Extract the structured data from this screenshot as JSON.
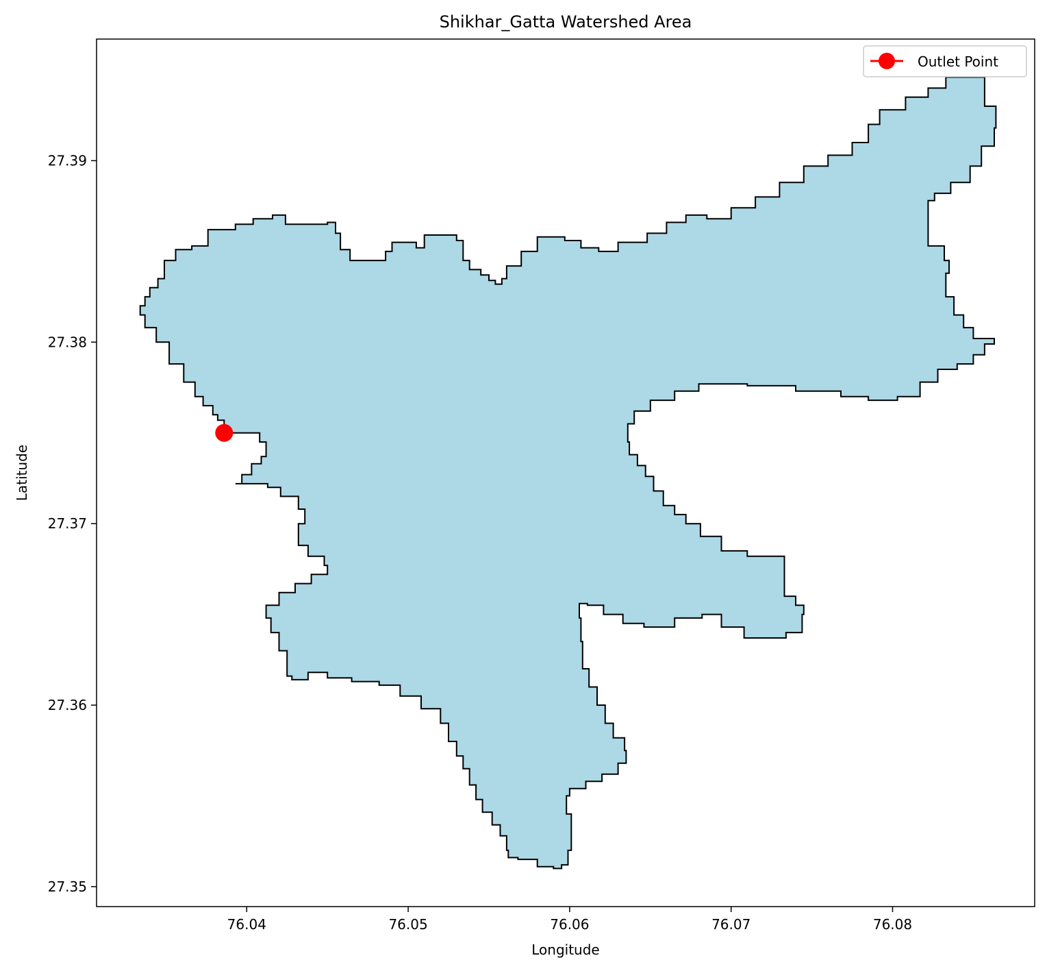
{
  "chart_data": {
    "type": "map",
    "title": "Shikhar_Gatta Watershed Area",
    "xlabel": "Longitude",
    "ylabel": "Latitude",
    "xlim": [
      76.0307,
      76.0888
    ],
    "ylim": [
      27.3489,
      27.3967
    ],
    "x_ticks": [
      76.04,
      76.05,
      76.06,
      76.07,
      76.08
    ],
    "x_tick_labels": [
      "76.04",
      "76.05",
      "76.06",
      "76.07",
      "76.08"
    ],
    "y_ticks": [
      27.35,
      27.36,
      27.37,
      27.38,
      27.39
    ],
    "y_tick_labels": [
      "27.35",
      "27.36",
      "27.37",
      "27.38",
      "27.39"
    ],
    "grid": false,
    "legend": {
      "placement": "top-right",
      "entries": [
        {
          "label": "Outlet Point",
          "color": "#ff0000",
          "marker": "circle"
        }
      ]
    },
    "colors": {
      "watershed_fill": "#add8e6",
      "boundary": "#000000",
      "outlet": "#ff0000"
    },
    "outlet": {
      "lon": 76.0386,
      "lat": 27.375
    },
    "boundary": [
      [
        76.0386,
        27.375
      ],
      [
        76.0386,
        27.3757
      ],
      [
        76.0382,
        27.376
      ],
      [
        76.0379,
        27.3765
      ],
      [
        76.0373,
        27.377
      ],
      [
        76.0368,
        27.3778
      ],
      [
        76.0361,
        27.3788
      ],
      [
        76.0352,
        27.38
      ],
      [
        76.0344,
        27.3808
      ],
      [
        76.0337,
        27.3815
      ],
      [
        76.0334,
        27.382
      ],
      [
        76.0337,
        27.3825
      ],
      [
        76.034,
        27.383
      ],
      [
        76.0345,
        27.3835
      ],
      [
        76.0349,
        27.3845
      ],
      [
        76.0356,
        27.3851
      ],
      [
        76.0366,
        27.3853
      ],
      [
        76.0376,
        27.3862
      ],
      [
        76.0393,
        27.3865
      ],
      [
        76.0404,
        27.3868
      ],
      [
        76.0416,
        27.387
      ],
      [
        76.0424,
        27.3865
      ],
      [
        76.0437,
        27.3865
      ],
      [
        76.045,
        27.3866
      ],
      [
        76.0455,
        27.386
      ],
      [
        76.0458,
        27.3851
      ],
      [
        76.0464,
        27.3845
      ],
      [
        76.0478,
        27.3845
      ],
      [
        76.0486,
        27.385
      ],
      [
        76.049,
        27.3855
      ],
      [
        76.05,
        27.3855
      ],
      [
        76.0505,
        27.3852
      ],
      [
        76.051,
        27.3859
      ],
      [
        76.052,
        27.3859
      ],
      [
        76.053,
        27.3856
      ],
      [
        76.0534,
        27.3845
      ],
      [
        76.0538,
        27.384
      ],
      [
        76.0545,
        27.3837
      ],
      [
        76.055,
        27.3834
      ],
      [
        76.0554,
        27.3832
      ],
      [
        76.0558,
        27.3835
      ],
      [
        76.0561,
        27.3842
      ],
      [
        76.057,
        27.385
      ],
      [
        76.058,
        27.3858
      ],
      [
        76.0589,
        27.3858
      ],
      [
        76.0597,
        27.3856
      ],
      [
        76.0607,
        27.3852
      ],
      [
        76.0618,
        27.385
      ],
      [
        76.063,
        27.3855
      ],
      [
        76.0648,
        27.386
      ],
      [
        76.066,
        27.3866
      ],
      [
        76.0672,
        27.387
      ],
      [
        76.0685,
        27.3868
      ],
      [
        76.07,
        27.3874
      ],
      [
        76.0715,
        27.388
      ],
      [
        76.073,
        27.3888
      ],
      [
        76.0745,
        27.3897
      ],
      [
        76.076,
        27.3903
      ],
      [
        76.0775,
        27.391
      ],
      [
        76.0785,
        27.392
      ],
      [
        76.0792,
        27.3928
      ],
      [
        76.0808,
        27.3935
      ],
      [
        76.0822,
        27.394
      ],
      [
        76.0833,
        27.3946
      ],
      [
        76.0848,
        27.3946
      ],
      [
        76.0857,
        27.393
      ],
      [
        76.0864,
        27.3918
      ],
      [
        76.0863,
        27.3908
      ],
      [
        76.0855,
        27.3897
      ],
      [
        76.0848,
        27.3888
      ],
      [
        76.0836,
        27.3882
      ],
      [
        76.0826,
        27.3878
      ],
      [
        76.0822,
        27.3867
      ],
      [
        76.0822,
        27.3853
      ],
      [
        76.0832,
        27.3845
      ],
      [
        76.0835,
        27.3838
      ],
      [
        76.0833,
        27.3825
      ],
      [
        76.0838,
        27.3815
      ],
      [
        76.0844,
        27.3808
      ],
      [
        76.085,
        27.3802
      ],
      [
        76.0863,
        27.3799
      ],
      [
        76.0857,
        27.3793
      ],
      [
        76.085,
        27.3788
      ],
      [
        76.084,
        27.3785
      ],
      [
        76.0828,
        27.3778
      ],
      [
        76.0817,
        27.377
      ],
      [
        76.0803,
        27.3768
      ],
      [
        76.0785,
        27.377
      ],
      [
        76.0768,
        27.3773
      ],
      [
        76.074,
        27.3776
      ],
      [
        76.071,
        27.3777
      ],
      [
        76.068,
        27.3773
      ],
      [
        76.0665,
        27.3768
      ],
      [
        76.065,
        27.3762
      ],
      [
        76.064,
        27.3755
      ],
      [
        76.0636,
        27.3745
      ],
      [
        76.0637,
        27.3738
      ],
      [
        76.0642,
        27.3732
      ],
      [
        76.0647,
        27.3726
      ],
      [
        76.0652,
        27.3718
      ],
      [
        76.0658,
        27.371
      ],
      [
        76.0665,
        27.3705
      ],
      [
        76.0672,
        27.37
      ],
      [
        76.0681,
        27.3693
      ],
      [
        76.0694,
        27.3685
      ],
      [
        76.071,
        27.3682
      ],
      [
        76.0733,
        27.3682
      ],
      [
        76.0733,
        27.366
      ],
      [
        76.074,
        27.3655
      ],
      [
        76.0745,
        27.365
      ],
      [
        76.0744,
        27.364
      ],
      [
        76.0734,
        27.3637
      ],
      [
        76.0722,
        27.3637
      ],
      [
        76.0708,
        27.3643
      ],
      [
        76.0694,
        27.365
      ],
      [
        76.0682,
        27.3648
      ],
      [
        76.0665,
        27.3643
      ],
      [
        76.0646,
        27.3645
      ],
      [
        76.0633,
        27.365
      ],
      [
        76.0621,
        27.3655
      ],
      [
        76.0611,
        27.3656
      ],
      [
        76.0606,
        27.3648
      ],
      [
        76.0607,
        27.3635
      ],
      [
        76.0608,
        27.362
      ],
      [
        76.0612,
        27.361
      ],
      [
        76.0617,
        27.36
      ],
      [
        76.0622,
        27.359
      ],
      [
        76.0627,
        27.3582
      ],
      [
        76.0634,
        27.3575
      ],
      [
        76.0635,
        27.3568
      ],
      [
        76.063,
        27.3562
      ],
      [
        76.062,
        27.3558
      ],
      [
        76.061,
        27.3554
      ],
      [
        76.06,
        27.355
      ],
      [
        76.0598,
        27.354
      ],
      [
        76.0601,
        27.353
      ],
      [
        76.0601,
        27.352
      ],
      [
        76.0599,
        27.3512
      ],
      [
        76.0595,
        27.351
      ],
      [
        76.059,
        27.3511
      ],
      [
        76.058,
        27.3515
      ],
      [
        76.0568,
        27.3516
      ],
      [
        76.0562,
        27.352
      ],
      [
        76.0561,
        27.3528
      ],
      [
        76.0557,
        27.3534
      ],
      [
        76.0552,
        27.3541
      ],
      [
        76.0546,
        27.3548
      ],
      [
        76.0542,
        27.3556
      ],
      [
        76.0538,
        27.3565
      ],
      [
        76.0534,
        27.3572
      ],
      [
        76.053,
        27.358
      ],
      [
        76.0525,
        27.359
      ],
      [
        76.052,
        27.3598
      ],
      [
        76.0508,
        27.3605
      ],
      [
        76.0495,
        27.3611
      ],
      [
        76.0482,
        27.3613
      ],
      [
        76.0465,
        27.3615
      ],
      [
        76.045,
        27.3618
      ],
      [
        76.0438,
        27.3614
      ],
      [
        76.0428,
        27.3616
      ],
      [
        76.0425,
        27.363
      ],
      [
        76.042,
        27.364
      ],
      [
        76.0415,
        27.3648
      ],
      [
        76.0412,
        27.3655
      ],
      [
        76.042,
        27.3662
      ],
      [
        76.043,
        27.3667
      ],
      [
        76.044,
        27.3672
      ],
      [
        76.045,
        27.3677
      ],
      [
        76.0448,
        27.3682
      ],
      [
        76.0438,
        27.3688
      ],
      [
        76.0432,
        27.3693
      ],
      [
        76.0432,
        27.37
      ],
      [
        76.0436,
        27.3708
      ],
      [
        76.0432,
        27.3715
      ],
      [
        76.0421,
        27.372
      ],
      [
        76.0413,
        27.3722
      ],
      [
        76.04,
        27.3722
      ],
      [
        76.0393,
        27.3722
      ],
      [
        76.0397,
        27.3727
      ],
      [
        76.0403,
        27.3733
      ],
      [
        76.0409,
        27.3737
      ],
      [
        76.0412,
        27.3745
      ],
      [
        76.0408,
        27.375
      ],
      [
        76.0386,
        27.375
      ]
    ]
  }
}
